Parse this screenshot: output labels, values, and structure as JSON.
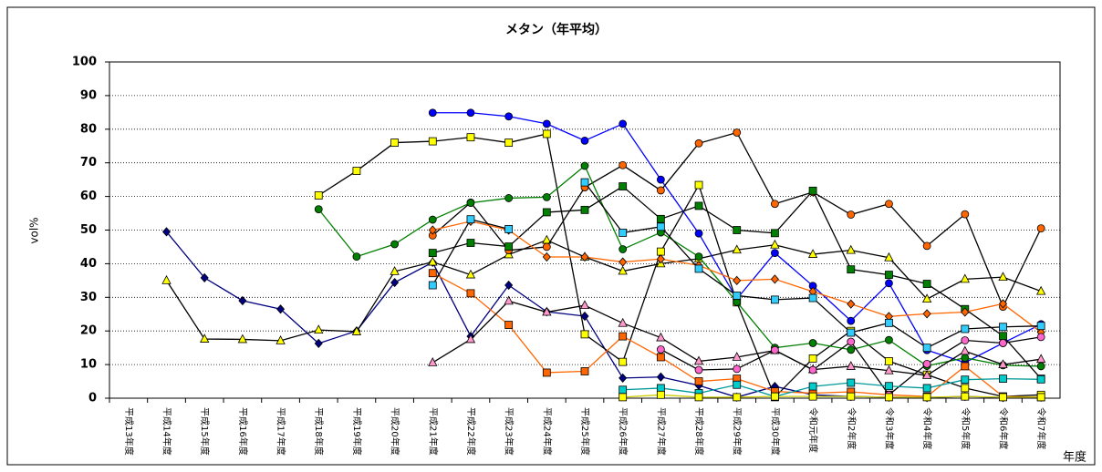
{
  "chart_data": {
    "type": "line",
    "title": "メタン（年平均）",
    "y_label": "vol%",
    "x_label": "年度",
    "categories": [
      "平成13年度",
      "平成14年度",
      "平成15年度",
      "平成16年度",
      "平成17年度",
      "平成18年度",
      "平成19年度",
      "平成20年度",
      "平成21年度",
      "平成22年度",
      "平成23年度",
      "平成24年度",
      "平成25年度",
      "平成26年度",
      "平成27年度",
      "平成28年度",
      "平成29年度",
      "平成30年度",
      "令和元年度",
      "令和2年度",
      "令和3年度",
      "令和4年度",
      "令和5年度",
      "令和6年度",
      "令和7年度"
    ],
    "ylim": [
      0,
      100
    ],
    "yticks": [
      0,
      10,
      20,
      30,
      40,
      50,
      60,
      70,
      80,
      90,
      100
    ],
    "grid": true,
    "series": [
      {
        "color": "#000080",
        "line_color": "#000080",
        "marker": "diamond",
        "values": [
          null,
          49.5,
          35.8,
          29,
          26.5,
          16.3,
          20,
          34.4,
          40.4,
          18.4,
          33.6,
          25.7,
          24.4,
          6,
          6.3,
          3.8,
          0.3,
          3.5,
          1,
          0.5,
          0.3,
          0.2,
          0.5,
          0.2,
          0.3
        ]
      },
      {
        "color": "#ffff00",
        "line_color": "#000000",
        "marker": "triangle",
        "values": [
          null,
          35,
          17.6,
          17.5,
          17.1,
          20.3,
          19.8,
          37.7,
          40.5,
          36.7,
          42.7,
          47,
          42,
          37.8,
          40,
          41.5,
          44.1,
          45.6,
          42.8,
          44,
          41.8,
          29.5,
          35.4,
          36,
          31.8
        ]
      },
      {
        "color": "#ffff00",
        "line_color": "#000000",
        "marker": "square",
        "values": [
          null,
          null,
          null,
          null,
          null,
          60.3,
          67.6,
          76,
          76.4,
          77.6,
          76,
          78.6,
          19,
          10.8,
          43.6,
          63.4,
          28.5,
          0.3,
          11.8,
          20,
          11,
          7,
          3,
          0.5,
          1
        ]
      },
      {
        "color": "#0000ff",
        "line_color": "#0000ff",
        "marker": "circle",
        "values": [
          null,
          null,
          null,
          null,
          null,
          null,
          null,
          null,
          84.9,
          84.9,
          83.8,
          81.6,
          76.6,
          81.6,
          65,
          49,
          29.5,
          43.2,
          33.4,
          23,
          34.2,
          14.3,
          10.6,
          16.4,
          22
        ]
      },
      {
        "color": "#ff6600",
        "line_color": "#000000",
        "marker": "circle",
        "values": [
          null,
          null,
          null,
          null,
          null,
          null,
          null,
          null,
          48.4,
          58.2,
          44,
          45,
          62.7,
          69.3,
          61.8,
          75.8,
          79,
          57.8,
          61.3,
          54.6,
          57.8,
          45.3,
          54.7,
          27.2,
          50.5
        ]
      },
      {
        "color": "#008000",
        "line_color": "#008000",
        "marker": "circle",
        "values": [
          null,
          null,
          null,
          null,
          null,
          56.2,
          42.1,
          45.8,
          53.1,
          58.1,
          59.5,
          59.8,
          69.1,
          44.3,
          49.3,
          42.1,
          28.6,
          15,
          16.4,
          14.4,
          17.3,
          9.6,
          12,
          9.8,
          9.5
        ]
      },
      {
        "color": "#008000",
        "line_color": "#000000",
        "marker": "square",
        "values": [
          null,
          null,
          null,
          null,
          null,
          null,
          null,
          null,
          43.2,
          46.2,
          45.1,
          55.3,
          56,
          63,
          53.3,
          57.2,
          50,
          49.1,
          61.7,
          38.3,
          36.7,
          34,
          26.5,
          18.5,
          5.8
        ]
      },
      {
        "color": "#ff6600",
        "line_color": "#ff6600",
        "marker": "diamond",
        "values": [
          null,
          null,
          null,
          null,
          null,
          null,
          null,
          null,
          50,
          52.6,
          50,
          42,
          42,
          40.5,
          41.4,
          39.5,
          35,
          35.4,
          31.7,
          28,
          24.3,
          25.1,
          25.6,
          28.1,
          19.6
        ]
      },
      {
        "color": "#ff6600",
        "line_color": "#ff6600",
        "marker": "square",
        "values": [
          null,
          null,
          null,
          null,
          null,
          null,
          null,
          null,
          37.2,
          31.2,
          21.8,
          7.6,
          8,
          18.4,
          12.2,
          5,
          5.8,
          2,
          1.5,
          1.9,
          1,
          0.5,
          9.5,
          0.5,
          0.3
        ]
      },
      {
        "color": "#33ccff",
        "line_color": "#000000",
        "marker": "square",
        "values": [
          null,
          null,
          null,
          null,
          null,
          null,
          null,
          null,
          33.6,
          53.2,
          50.3,
          null,
          64.2,
          49.2,
          51,
          38.5,
          30.5,
          29.3,
          29.8,
          19.5,
          22.4,
          15,
          20.6,
          21.2,
          21.5
        ]
      },
      {
        "color": "#ff99cc",
        "line_color": "#000000",
        "marker": "triangle",
        "values": [
          null,
          null,
          null,
          null,
          null,
          null,
          null,
          null,
          10.6,
          17.5,
          28.9,
          25.6,
          27.6,
          22.3,
          18,
          11,
          12.2,
          14.2,
          8.5,
          9.5,
          8.2,
          6.8,
          14,
          10,
          11.6
        ]
      },
      {
        "color": "#ff66cc",
        "line_color": "#000000",
        "marker": "circle",
        "values": [
          null,
          null,
          null,
          null,
          null,
          null,
          null,
          null,
          null,
          null,
          null,
          null,
          null,
          null,
          14.5,
          8.4,
          8.7,
          14.3,
          8.4,
          16.8,
          1,
          10.2,
          17.2,
          16.4,
          18.2
        ]
      },
      {
        "color": "#00cccc",
        "line_color": "#009999",
        "marker": "square",
        "values": [
          null,
          null,
          null,
          null,
          null,
          null,
          null,
          null,
          null,
          null,
          null,
          null,
          null,
          2.5,
          3,
          1.5,
          4,
          0.5,
          3.5,
          4.6,
          3.6,
          3,
          5.5,
          5.8,
          5.6
        ]
      },
      {
        "color": "#ffff00",
        "line_color": "#cccc00",
        "marker": "square",
        "values": [
          null,
          null,
          null,
          null,
          null,
          null,
          null,
          null,
          null,
          null,
          null,
          null,
          null,
          0.3,
          1,
          0.3,
          0.3,
          0.5,
          0.5,
          0.5,
          0.3,
          0.3,
          0.5,
          0.3,
          0.3
        ]
      }
    ]
  }
}
